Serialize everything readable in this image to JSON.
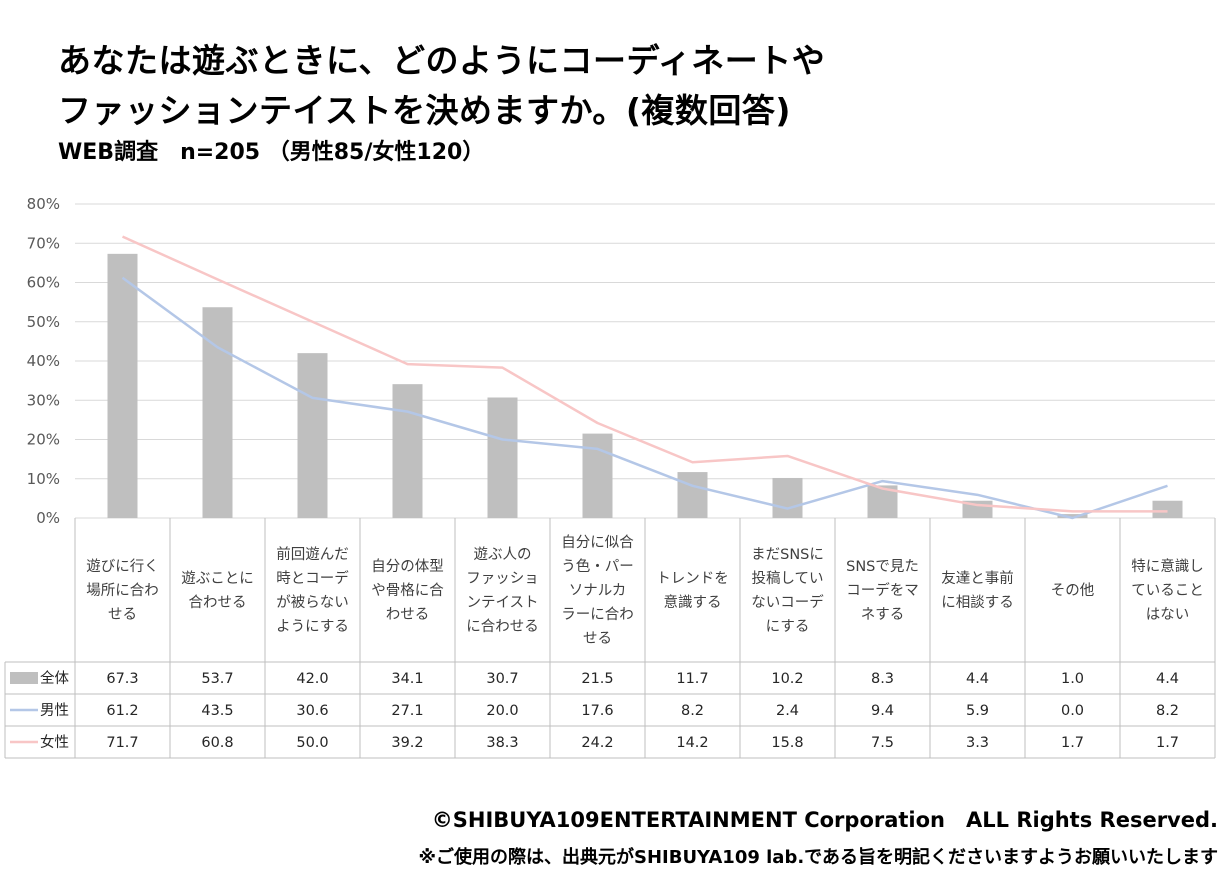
{
  "header": {
    "title_line1": "あなたは遊ぶときに、どのようにコーディネートや",
    "title_line2": "ファッションテイストを決めますか。(複数回答)",
    "subtitle": "WEB調査　n=205 （男性85/女性120）"
  },
  "footer": {
    "credit": "©SHIBUYA109ENTERTAINMENT Corporation　ALL Rights Reserved.",
    "note": "※ご使用の際は、出典元がSHIBUYA109 lab.である旨を明記くださいますようお願いいたします"
  },
  "colors": {
    "bar": "#bfbfbf",
    "male": "#b4c7e7",
    "female": "#f8c6c6",
    "grid": "#d9d9d9",
    "text": "#595959"
  },
  "chart_data": {
    "type": "bar",
    "ylim": [
      0,
      80
    ],
    "yticks": [
      "0%",
      "10%",
      "20%",
      "30%",
      "40%",
      "50%",
      "60%",
      "70%",
      "80%"
    ],
    "categories": [
      [
        "遊びに行く",
        "場所に合わ",
        "せる"
      ],
      [
        "遊ぶことに",
        "合わせる"
      ],
      [
        "前回遊んだ",
        "時とコーデ",
        "が被らない",
        "ようにする"
      ],
      [
        "自分の体型",
        "や骨格に合",
        "わせる"
      ],
      [
        "遊ぶ人の",
        "ファッショ",
        "ンテイスト",
        "に合わせる"
      ],
      [
        "自分に似合",
        "う色・パー",
        "ソナルカ",
        "ラーに合わ",
        "せる"
      ],
      [
        "トレンドを",
        "意識する"
      ],
      [
        "まだSNSに",
        "投稿してい",
        "ないコーデ",
        "にする"
      ],
      [
        "SNSで見た",
        "コーデをマ",
        "ネする"
      ],
      [
        "友達と事前",
        "に相談する"
      ],
      [
        "その他"
      ],
      [
        "特に意識し",
        "ていること",
        "はない"
      ]
    ],
    "series": [
      {
        "name": "全体",
        "kind": "bar",
        "values": [
          67.3,
          53.7,
          42.0,
          34.1,
          30.7,
          21.5,
          11.7,
          10.2,
          8.3,
          4.4,
          1.0,
          4.4
        ]
      },
      {
        "name": "男性",
        "kind": "line",
        "values": [
          61.2,
          43.5,
          30.6,
          27.1,
          20.0,
          17.6,
          8.2,
          2.4,
          9.4,
          5.9,
          0.0,
          8.2
        ]
      },
      {
        "name": "女性",
        "kind": "line",
        "values": [
          71.7,
          60.8,
          50.0,
          39.2,
          38.3,
          24.2,
          14.2,
          15.8,
          7.5,
          3.3,
          1.7,
          1.7
        ]
      }
    ]
  }
}
